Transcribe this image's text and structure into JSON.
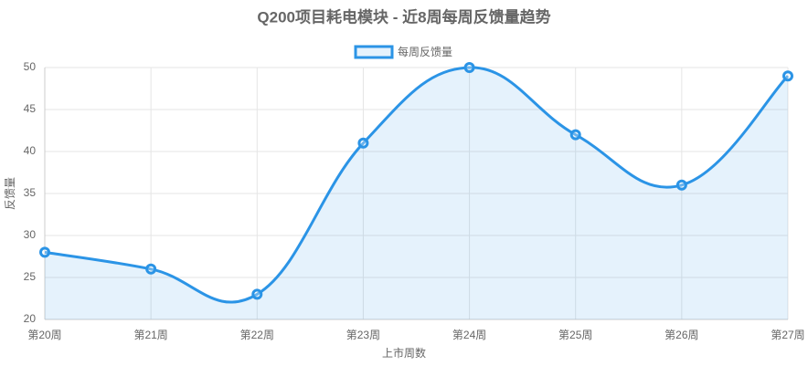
{
  "chart_data": {
    "type": "line",
    "title": "Q200项目耗电模块 - 近8周每周反馈量趋势",
    "categories": [
      "第20周",
      "第21周",
      "第22周",
      "第23周",
      "第24周",
      "第25周",
      "第26周",
      "第27周"
    ],
    "series": [
      {
        "name": "每周反馈量",
        "color": "#2b94e6",
        "values": [
          28,
          26,
          23,
          41,
          50,
          42,
          36,
          49
        ]
      }
    ],
    "xlabel": "上市周数",
    "ylabel": "反馈量",
    "ylim": [
      20,
      50
    ],
    "yticks": [
      20,
      25,
      30,
      35,
      40,
      45,
      50
    ],
    "grid": true,
    "legend": "top",
    "smooth": true,
    "fill": true
  }
}
